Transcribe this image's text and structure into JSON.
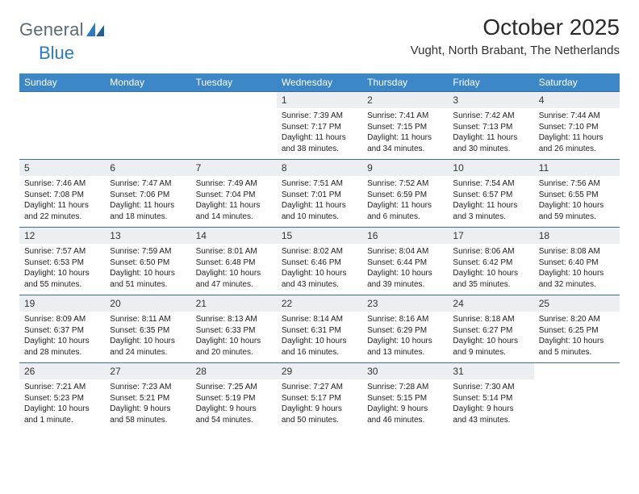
{
  "brand": {
    "part1": "General",
    "part2": "Blue"
  },
  "title": "October 2025",
  "location": "Vught, North Brabant, The Netherlands",
  "colors": {
    "header_bg": "#3b87c8",
    "header_text": "#ffffff",
    "row_border": "#3b6e9e",
    "daynum_bg": "#eceff1",
    "body_text": "#222222",
    "logo_gray": "#5a6a78",
    "logo_blue": "#2b7bbf"
  },
  "weekdays": [
    "Sunday",
    "Monday",
    "Tuesday",
    "Wednesday",
    "Thursday",
    "Friday",
    "Saturday"
  ],
  "weeks": [
    [
      {
        "blank": true
      },
      {
        "blank": true
      },
      {
        "blank": true
      },
      {
        "n": "1",
        "sr": "7:39 AM",
        "ss": "7:17 PM",
        "dl": "11 hours and 38 minutes."
      },
      {
        "n": "2",
        "sr": "7:41 AM",
        "ss": "7:15 PM",
        "dl": "11 hours and 34 minutes."
      },
      {
        "n": "3",
        "sr": "7:42 AM",
        "ss": "7:13 PM",
        "dl": "11 hours and 30 minutes."
      },
      {
        "n": "4",
        "sr": "7:44 AM",
        "ss": "7:10 PM",
        "dl": "11 hours and 26 minutes."
      }
    ],
    [
      {
        "n": "5",
        "sr": "7:46 AM",
        "ss": "7:08 PM",
        "dl": "11 hours and 22 minutes."
      },
      {
        "n": "6",
        "sr": "7:47 AM",
        "ss": "7:06 PM",
        "dl": "11 hours and 18 minutes."
      },
      {
        "n": "7",
        "sr": "7:49 AM",
        "ss": "7:04 PM",
        "dl": "11 hours and 14 minutes."
      },
      {
        "n": "8",
        "sr": "7:51 AM",
        "ss": "7:01 PM",
        "dl": "11 hours and 10 minutes."
      },
      {
        "n": "9",
        "sr": "7:52 AM",
        "ss": "6:59 PM",
        "dl": "11 hours and 6 minutes."
      },
      {
        "n": "10",
        "sr": "7:54 AM",
        "ss": "6:57 PM",
        "dl": "11 hours and 3 minutes."
      },
      {
        "n": "11",
        "sr": "7:56 AM",
        "ss": "6:55 PM",
        "dl": "10 hours and 59 minutes."
      }
    ],
    [
      {
        "n": "12",
        "sr": "7:57 AM",
        "ss": "6:53 PM",
        "dl": "10 hours and 55 minutes."
      },
      {
        "n": "13",
        "sr": "7:59 AM",
        "ss": "6:50 PM",
        "dl": "10 hours and 51 minutes."
      },
      {
        "n": "14",
        "sr": "8:01 AM",
        "ss": "6:48 PM",
        "dl": "10 hours and 47 minutes."
      },
      {
        "n": "15",
        "sr": "8:02 AM",
        "ss": "6:46 PM",
        "dl": "10 hours and 43 minutes."
      },
      {
        "n": "16",
        "sr": "8:04 AM",
        "ss": "6:44 PM",
        "dl": "10 hours and 39 minutes."
      },
      {
        "n": "17",
        "sr": "8:06 AM",
        "ss": "6:42 PM",
        "dl": "10 hours and 35 minutes."
      },
      {
        "n": "18",
        "sr": "8:08 AM",
        "ss": "6:40 PM",
        "dl": "10 hours and 32 minutes."
      }
    ],
    [
      {
        "n": "19",
        "sr": "8:09 AM",
        "ss": "6:37 PM",
        "dl": "10 hours and 28 minutes."
      },
      {
        "n": "20",
        "sr": "8:11 AM",
        "ss": "6:35 PM",
        "dl": "10 hours and 24 minutes."
      },
      {
        "n": "21",
        "sr": "8:13 AM",
        "ss": "6:33 PM",
        "dl": "10 hours and 20 minutes."
      },
      {
        "n": "22",
        "sr": "8:14 AM",
        "ss": "6:31 PM",
        "dl": "10 hours and 16 minutes."
      },
      {
        "n": "23",
        "sr": "8:16 AM",
        "ss": "6:29 PM",
        "dl": "10 hours and 13 minutes."
      },
      {
        "n": "24",
        "sr": "8:18 AM",
        "ss": "6:27 PM",
        "dl": "10 hours and 9 minutes."
      },
      {
        "n": "25",
        "sr": "8:20 AM",
        "ss": "6:25 PM",
        "dl": "10 hours and 5 minutes."
      }
    ],
    [
      {
        "n": "26",
        "sr": "7:21 AM",
        "ss": "5:23 PM",
        "dl": "10 hours and 1 minute."
      },
      {
        "n": "27",
        "sr": "7:23 AM",
        "ss": "5:21 PM",
        "dl": "9 hours and 58 minutes."
      },
      {
        "n": "28",
        "sr": "7:25 AM",
        "ss": "5:19 PM",
        "dl": "9 hours and 54 minutes."
      },
      {
        "n": "29",
        "sr": "7:27 AM",
        "ss": "5:17 PM",
        "dl": "9 hours and 50 minutes."
      },
      {
        "n": "30",
        "sr": "7:28 AM",
        "ss": "5:15 PM",
        "dl": "9 hours and 46 minutes."
      },
      {
        "n": "31",
        "sr": "7:30 AM",
        "ss": "5:14 PM",
        "dl": "9 hours and 43 minutes."
      },
      {
        "blank": true
      }
    ]
  ],
  "labels": {
    "sunrise": "Sunrise:",
    "sunset": "Sunset:",
    "daylight": "Daylight:"
  }
}
